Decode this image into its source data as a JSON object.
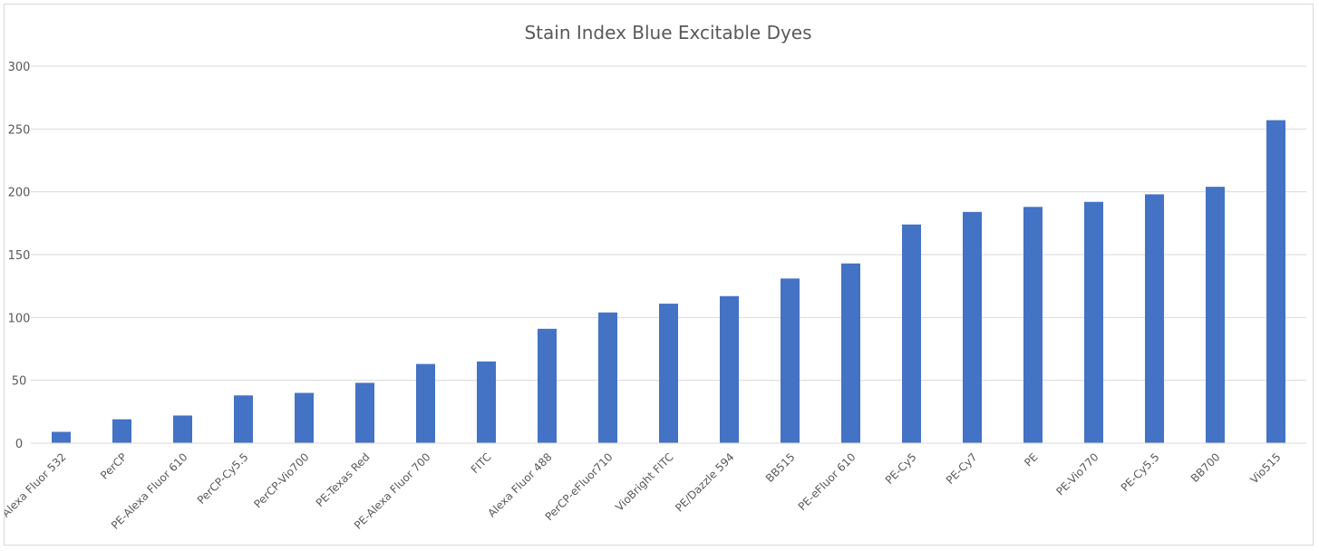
{
  "chart_data": {
    "type": "bar",
    "title": "Stain Index Blue Excitable Dyes",
    "xlabel": "",
    "ylabel": "",
    "ylim": [
      0,
      300
    ],
    "yticks": [
      "0",
      "50",
      "100",
      "150",
      "200",
      "250",
      "300"
    ],
    "grid": true,
    "legend": "none",
    "bar_color": "#4472C4",
    "categories": [
      "Alexa Fluor 532",
      "PerCP",
      "PE-Alexa Fluor 610",
      "PerCP-Cy5.5",
      "PerCP-Vio700",
      "PE-Texas Red",
      "PE-Alexa Fluor 700",
      "FITC",
      "Alexa Fluor 488",
      "PerCP-eFluor710",
      "VioBright FITC",
      "PE/Dazzle 594",
      "BB515",
      "PE-eFluor 610",
      "PE-Cy5",
      "PE-Cy7",
      "PE",
      "PE-Vio770",
      "PE-Cy5.5",
      "BB700",
      "Vio515"
    ],
    "values": [
      9,
      19,
      22,
      38,
      40,
      48,
      63,
      65,
      91,
      104,
      111,
      117,
      131,
      143,
      174,
      184,
      188,
      192,
      198,
      204,
      257
    ]
  }
}
